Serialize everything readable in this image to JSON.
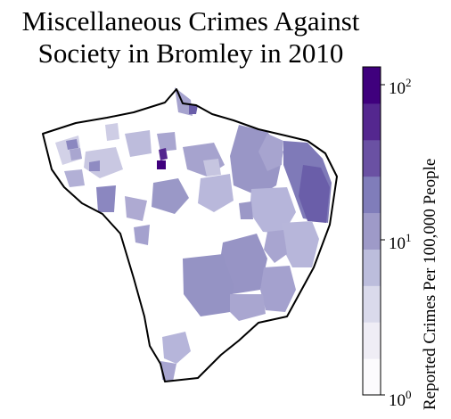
{
  "title_line1": "Miscellaneous Crimes Against",
  "title_line2": "Society in Bromley in 2010",
  "colorbar": {
    "label": "Reported Crimes Per 100,000 People",
    "scale": "log",
    "range": [
      1,
      130
    ],
    "ticks": [
      {
        "value": 1,
        "base": "10",
        "exp": "0"
      },
      {
        "value": 10,
        "base": "10",
        "exp": "1"
      },
      {
        "value": 100,
        "base": "10",
        "exp": "2"
      }
    ],
    "colors": [
      "#fcfbfd",
      "#efedf5",
      "#dadaeb",
      "#bcbddc",
      "#9e9ac8",
      "#807dba",
      "#6a51a3",
      "#54278f",
      "#3f007d"
    ]
  }
}
